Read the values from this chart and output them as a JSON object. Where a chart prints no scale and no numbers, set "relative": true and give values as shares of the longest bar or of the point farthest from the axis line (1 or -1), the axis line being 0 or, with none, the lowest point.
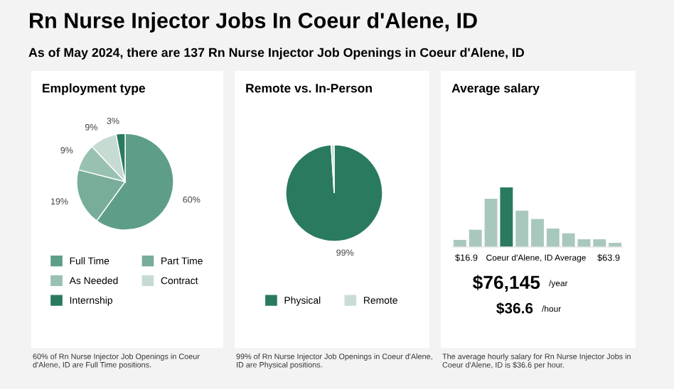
{
  "chart_data": [
    {
      "type": "other",
      "title": "Rn Nurse Injector Jobs In Coeur d'Alene, ID",
      "subtitle": "As of May 2024, there are 137 Rn Nurse Injector Job Openings in Coeur d'Alene, ID"
    },
    {
      "type": "pie",
      "title": "Employment type",
      "categories": [
        "Full Time",
        "Part Time",
        "As Needed",
        "Contract",
        "Internship"
      ],
      "values": [
        60,
        19,
        9,
        9,
        3
      ],
      "colors": [
        "#5e9e88",
        "#78ad99",
        "#98c1b1",
        "#c6dcd3",
        "#2a7a60"
      ],
      "value_labels": [
        "60%",
        "19%",
        "9%",
        "9%",
        "3%"
      ],
      "legend": "bottom",
      "annotations": [
        "60% of Rn Nurse Injector Job Openings in Coeur d'Alene, ID are Full Time positions."
      ]
    },
    {
      "type": "pie",
      "title": "Remote vs. In-Person",
      "categories": [
        "Physical",
        "Remote"
      ],
      "values": [
        99,
        1
      ],
      "colors": [
        "#2a7a60",
        "#c8ddd5"
      ],
      "value_labels": [
        "99%",
        null
      ],
      "legend": "bottom",
      "annotations": [
        "99% of Rn Nurse Injector Job Openings in Coeur d'Alene, ID are Physical positions."
      ]
    },
    {
      "type": "bar",
      "title": "Average salary",
      "relative": true,
      "categories": [
        null,
        null,
        null,
        null,
        null,
        null,
        null,
        null,
        null,
        null,
        null
      ],
      "values": [
        0.12,
        0.29,
        0.81,
        1,
        0.61,
        0.47,
        0.31,
        0.23,
        0.13,
        0.13,
        0.07
      ],
      "colors": [
        "#a8c8bc",
        "#a8c8bc",
        "#a8c8bc",
        "#2a7a60",
        "#a8c8bc",
        "#a8c8bc",
        "#a8c8bc",
        "#a8c8bc",
        "#a8c8bc",
        "#a8c8bc",
        "#a8c8bc"
      ],
      "annotations": [
        "$16.9",
        "Coeur d'Alene, ID Average",
        "$63.9",
        "$76,145",
        "/year",
        "$36.6",
        "/hour",
        "The average hourly salary for Rn Nurse Injector Jobs in Coeur d'Alene, ID is $36.6 per hour."
      ]
    }
  ]
}
